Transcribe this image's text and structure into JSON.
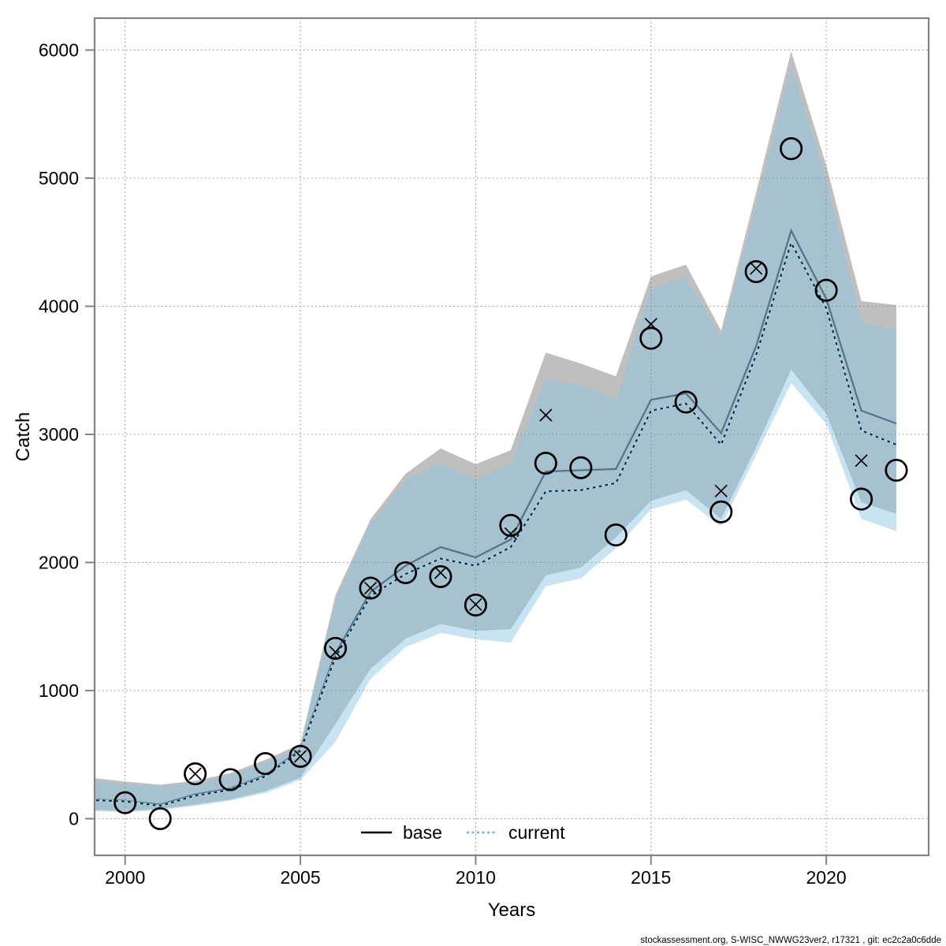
{
  "chart_data": {
    "type": "line",
    "title": "",
    "xlabel": "Years",
    "ylabel": "Catch",
    "x_ticks": [
      2000,
      2005,
      2010,
      2015,
      2020
    ],
    "y_ticks": [
      0,
      1000,
      2000,
      3000,
      4000,
      5000,
      6000
    ],
    "xlim": [
      1999.1,
      2022.9
    ],
    "ylim": [
      -290,
      6250
    ],
    "grid": "dotted",
    "years": [
      1999,
      2000,
      2001,
      2002,
      2003,
      2004,
      2005,
      2006,
      2007,
      2008,
      2009,
      2010,
      2011,
      2012,
      2013,
      2014,
      2015,
      2016,
      2017,
      2018,
      2019,
      2020,
      2021,
      2022
    ],
    "series": [
      {
        "name": "base_fit",
        "type": "line",
        "style": "solid",
        "values": [
          150,
          140,
          110,
          190,
          235,
          340,
          540,
          1290,
          1770,
          1975,
          2120,
          2040,
          2180,
          2710,
          2720,
          2730,
          3270,
          3320,
          3010,
          3690,
          4590,
          4060,
          3185,
          3085
        ]
      },
      {
        "name": "current_fit",
        "type": "line",
        "style": "dotted",
        "values": [
          145,
          135,
          100,
          180,
          225,
          330,
          530,
          1260,
          1740,
          1910,
          2030,
          1975,
          2120,
          2555,
          2565,
          2620,
          3185,
          3240,
          2920,
          3620,
          4495,
          3985,
          3030,
          2920
        ]
      },
      {
        "name": "base_ci_upper",
        "type": "band-edge",
        "values": [
          320,
          290,
          265,
          295,
          356,
          460,
          583,
          1745,
          2337,
          2693,
          2890,
          2767,
          2877,
          3638,
          3553,
          3453,
          4233,
          4325,
          3810,
          4890,
          5990,
          5100,
          4040,
          4010
        ]
      },
      {
        "name": "base_ci_lower",
        "type": "band-edge",
        "values": [
          70,
          60,
          75,
          110,
          150,
          215,
          320,
          740,
          1170,
          1405,
          1520,
          1465,
          1480,
          1900,
          1960,
          2195,
          2480,
          2565,
          2340,
          2900,
          3505,
          3160,
          2470,
          2380
        ]
      },
      {
        "name": "current_ci_upper",
        "type": "band-edge",
        "values": [
          300,
          270,
          250,
          280,
          340,
          440,
          552,
          1705,
          2307,
          2632,
          2767,
          2644,
          2767,
          3430,
          3381,
          3270,
          4141,
          4221,
          3760,
          4790,
          5875,
          4990,
          3870,
          3820
        ]
      },
      {
        "name": "current_ci_lower",
        "type": "band-edge",
        "values": [
          60,
          50,
          65,
          100,
          140,
          200,
          300,
          600,
          1090,
          1340,
          1450,
          1400,
          1375,
          1815,
          1875,
          2110,
          2415,
          2490,
          2280,
          2840,
          3400,
          3080,
          2340,
          2245
        ]
      },
      {
        "name": "observations_circle",
        "type": "scatter",
        "marker": "circle",
        "values": [
          null,
          125,
          0,
          350,
          305,
          430,
          487,
          1330,
          1800,
          1920,
          1890,
          1668,
          2290,
          2775,
          2740,
          2215,
          3750,
          3252,
          2395,
          4270,
          5230,
          4125,
          2495,
          2720
        ]
      },
      {
        "name": "observations_cross",
        "type": "scatter",
        "marker": "x",
        "values": [
          null,
          null,
          null,
          350,
          null,
          null,
          487,
          1300,
          1800,
          null,
          1920,
          1672,
          2225,
          3150,
          null,
          null,
          3860,
          null,
          2558,
          4295,
          null,
          null,
          2795,
          null
        ]
      }
    ],
    "legend": {
      "position": "bottom-center-inside",
      "items": [
        {
          "label": "base",
          "style": "solid-black"
        },
        {
          "label": "current",
          "style": "dotted-blue"
        }
      ]
    },
    "colors": {
      "base_band": "#bfbfbf",
      "current_band_rgba": "rgba(138,197,229,0.47)",
      "base_line": "#4e6e7e",
      "current_line_under": "#a3d0e8",
      "current_line_dash": "#0d1f2a",
      "legend_current": "#73b2d8",
      "frame": "#838383",
      "grid": "#8c8c8c",
      "marker": "#000000"
    }
  },
  "footer": {
    "text": "stockassessment.org, S-WISC_NWWG23ver2, r17321 , git: ec2c2a0c6dde"
  }
}
